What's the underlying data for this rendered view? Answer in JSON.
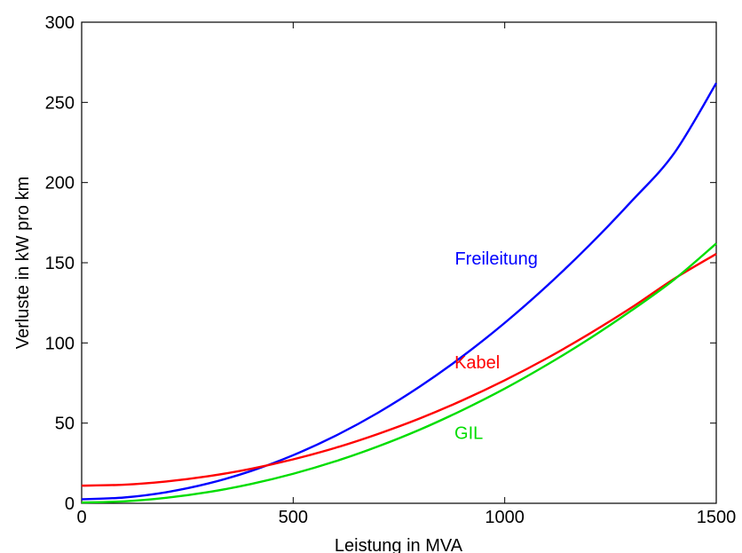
{
  "chart_data": {
    "type": "line",
    "xlabel": "Leistung in MVA",
    "ylabel": "Verluste in kW pro km",
    "xlim": [
      0,
      1500
    ],
    "ylim": [
      0,
      300
    ],
    "xticks": [
      0,
      500,
      1000,
      1500
    ],
    "yticks": [
      0,
      50,
      100,
      150,
      200,
      250,
      300
    ],
    "grid": false,
    "x": [
      0,
      100,
      200,
      300,
      400,
      500,
      600,
      700,
      800,
      900,
      1000,
      1100,
      1200,
      1300,
      1400,
      1500
    ],
    "series": [
      {
        "name": "Freileitung",
        "color": "#0000ff",
        "values": [
          2.5,
          3.6,
          6.9,
          12.4,
          20.1,
          30.0,
          42.1,
          56.4,
          72.9,
          91.6,
          112.5,
          135.6,
          160.9,
          188.4,
          218.1,
          262.0
        ]
      },
      {
        "name": "Kabel",
        "color": "#ff0000",
        "values": [
          11.0,
          11.6,
          13.6,
          16.9,
          21.5,
          27.4,
          34.6,
          43.2,
          53.0,
          64.2,
          76.7,
          90.5,
          105.7,
          122.1,
          139.9,
          155.5
        ]
      },
      {
        "name": "GIL",
        "color": "#00dd00",
        "values": [
          0.5,
          1.2,
          3.4,
          7.0,
          12.0,
          18.4,
          26.2,
          35.4,
          46.0,
          58.1,
          71.5,
          86.4,
          102.6,
          120.3,
          139.4,
          162.0
        ]
      }
    ],
    "annotations": [
      {
        "text": "Freileitung",
        "x": 980,
        "y": 149,
        "color": "#0000ff"
      },
      {
        "text": "Kabel",
        "x": 935,
        "y": 84,
        "color": "#ff0000"
      },
      {
        "text": "GIL",
        "x": 915,
        "y": 40,
        "color": "#00dd00"
      }
    ]
  }
}
